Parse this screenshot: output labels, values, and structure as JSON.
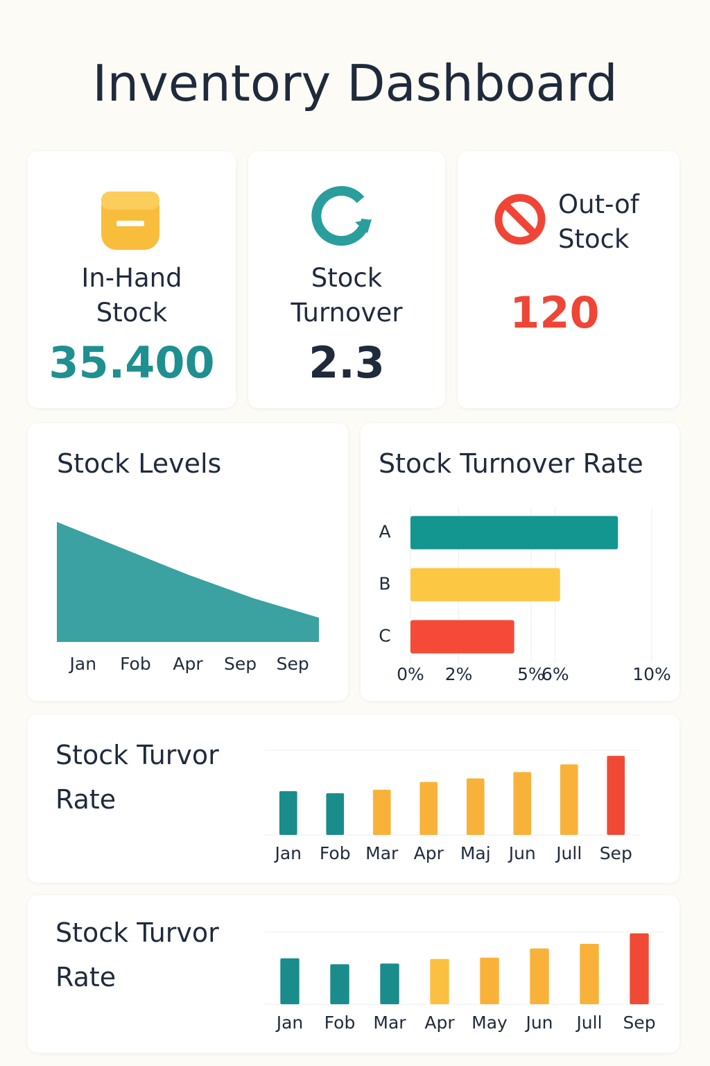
{
  "title": "Inventory Dashboard",
  "kpis": [
    {
      "label": "In-Hand Stock",
      "value": "35.400"
    },
    {
      "label": "Stock Turnover",
      "value": "2.3"
    },
    {
      "label": "Out-of Stock",
      "value": "120"
    }
  ],
  "chart_data": [
    {
      "type": "area",
      "title": "Stock Levels",
      "categories": [
        "Jan",
        "Fob",
        "Apr",
        "Sep",
        "Sep"
      ],
      "values": [
        173,
        135,
        97,
        63,
        35
      ],
      "ylim": [
        0,
        180
      ],
      "color": "#3ba1a1"
    },
    {
      "type": "hbar",
      "title": "Stock Turnover Rate",
      "categories": [
        "A",
        "B",
        "C"
      ],
      "values": [
        8.6,
        6.2,
        4.3
      ],
      "colors": [
        "#139690",
        "#fcc844",
        "#f54a37"
      ],
      "xlim": [
        0,
        10
      ],
      "grid": true,
      "xticks": [
        {
          "value": 0,
          "label": "0%"
        },
        {
          "value": 2,
          "label": "2%"
        },
        {
          "value": 5,
          "label": "5%"
        },
        {
          "value": 6,
          "label": "6%"
        },
        {
          "value": 10,
          "label": "10%"
        }
      ]
    },
    {
      "type": "bar",
      "title": "Stock Turvor Rate",
      "categories": [
        "Jan",
        "Fob",
        "Mar",
        "Apr",
        "Maj",
        "Jun",
        "Jull",
        "Sep"
      ],
      "values": [
        62,
        59,
        64,
        75,
        80,
        89,
        100,
        112
      ],
      "ylim": [
        0,
        120
      ],
      "colors": [
        "#1a8c8c",
        "#1a8c8c",
        "#f8b23a",
        "#f8b23a",
        "#f8b23a",
        "#f8b23a",
        "#f8b23a",
        "#f04a36"
      ]
    },
    {
      "type": "bar",
      "title": "Stock Turvor Rate",
      "categories": [
        "Jan",
        "Fob",
        "Mar",
        "Apr",
        "May",
        "Jun",
        "Jull",
        "Sep"
      ],
      "values": [
        70,
        61,
        62,
        69,
        71,
        85,
        92,
        108
      ],
      "ylim": [
        0,
        110
      ],
      "colors": [
        "#1a8c8c",
        "#1a8c8c",
        "#1a8c8c",
        "#fbc042",
        "#f8b23a",
        "#f8b23a",
        "#f8b23a",
        "#f04a36"
      ]
    }
  ]
}
